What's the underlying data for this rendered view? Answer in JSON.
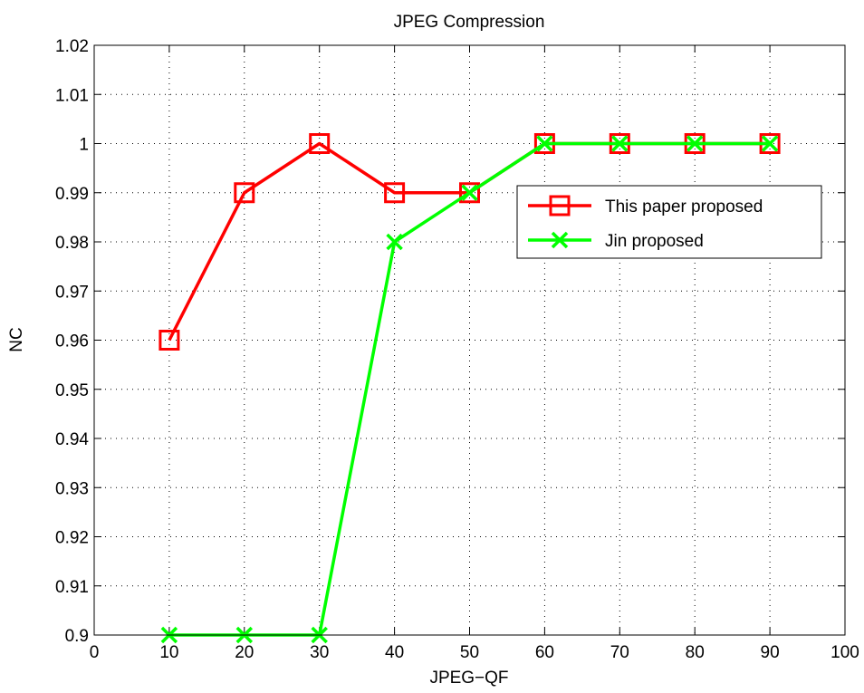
{
  "chart_data": {
    "type": "line",
    "title": "JPEG Compression",
    "xlabel": "JPEG−QF",
    "ylabel": "NC",
    "xlim": [
      0,
      100
    ],
    "ylim": [
      0.9,
      1.02
    ],
    "xticks": [
      "0",
      "10",
      "20",
      "30",
      "40",
      "50",
      "60",
      "70",
      "80",
      "90",
      "100"
    ],
    "yticks": [
      "0.9",
      "0.91",
      "0.92",
      "0.93",
      "0.94",
      "0.95",
      "0.96",
      "0.97",
      "0.98",
      "0.99",
      "1",
      "1.01",
      "1.02"
    ],
    "grid": true,
    "legend_position": "right",
    "x": [
      10,
      20,
      30,
      40,
      50,
      60,
      70,
      80,
      90
    ],
    "series": [
      {
        "name": "This paper proposed",
        "color": "#ff0000",
        "marker": "square",
        "values": [
          0.96,
          0.99,
          1.0,
          0.99,
          0.99,
          1.0,
          1.0,
          1.0,
          1.0
        ]
      },
      {
        "name": "Jin proposed",
        "color": "#00ff00",
        "marker": "x",
        "values": [
          0.9,
          0.9,
          0.9,
          0.98,
          0.99,
          1.0,
          1.0,
          1.0,
          1.0
        ]
      }
    ]
  }
}
